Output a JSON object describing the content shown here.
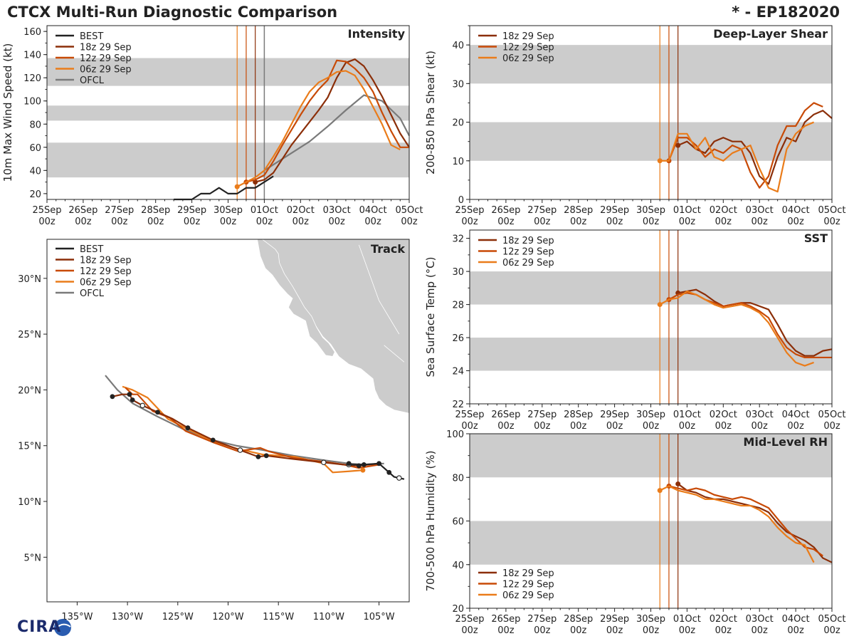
{
  "header": {
    "title": "CTCX Multi-Run Diagnostic Comparison",
    "storm": "* - EP182020"
  },
  "logo": {
    "text": "CIRA"
  },
  "colors": {
    "best": "#222222",
    "run18z": "#8b2e08",
    "run12z": "#c84a06",
    "run06z": "#ea7c1a",
    "ofcl": "#7a7a7a",
    "band": "#cccccc"
  },
  "time_axis": {
    "ticks": [
      "25Sep\n00z",
      "26Sep\n00z",
      "27Sep\n00z",
      "28Sep\n00z",
      "29Sep\n00z",
      "30Sep\n00z",
      "01Oct\n00z",
      "02Oct\n00z",
      "03Oct\n00z",
      "04Oct\n00z",
      "05Oct\n00z"
    ],
    "run_init_hours": [
      126,
      132,
      138
    ]
  },
  "chart_data": [
    {
      "id": "intensity",
      "type": "line",
      "title": "Intensity",
      "ylabel": "10m Max Wind Speed (kt)",
      "xlabel": "",
      "xunit": "hours since 25Sep 00z",
      "xlim": [
        0,
        240
      ],
      "ylim": [
        15,
        165
      ],
      "yticks": [
        20,
        40,
        60,
        80,
        100,
        120,
        140,
        160
      ],
      "bands": [
        [
          34,
          64
        ],
        [
          83,
          96
        ],
        [
          113,
          137
        ]
      ],
      "legend": [
        "BEST",
        "18z 29 Sep",
        "12z 29 Sep",
        "06z 29 Sep",
        "OFCL"
      ],
      "legend_position": "top-left",
      "series": [
        {
          "name": "BEST",
          "color": "#222222",
          "x": [
            84,
            90,
            96,
            102,
            108,
            114,
            120,
            126,
            132,
            138,
            144,
            150
          ],
          "y": [
            15,
            15,
            15,
            20,
            20,
            25,
            20,
            20,
            25,
            25,
            30,
            35
          ]
        },
        {
          "name": "OFCL",
          "color": "#7a7a7a",
          "x": [
            144,
            150,
            162,
            174,
            186,
            198,
            210,
            222,
            234,
            240
          ],
          "y": [
            40,
            45,
            55,
            65,
            78,
            92,
            105,
            100,
            85,
            70
          ]
        },
        {
          "name": "18z 29 Sep",
          "color": "#8b2e08",
          "x": [
            138,
            144,
            150,
            156,
            162,
            168,
            174,
            180,
            186,
            192,
            198,
            204,
            210,
            216,
            222,
            228,
            234,
            240
          ],
          "y": [
            30,
            32,
            38,
            50,
            62,
            72,
            82,
            92,
            103,
            120,
            133,
            136,
            130,
            118,
            104,
            88,
            72,
            60
          ]
        },
        {
          "name": "12z 29 Sep",
          "color": "#c84a06",
          "x": [
            132,
            138,
            144,
            150,
            156,
            162,
            168,
            174,
            180,
            186,
            192,
            198,
            204,
            210,
            216,
            222,
            228,
            234,
            240
          ],
          "y": [
            30,
            32,
            36,
            48,
            62,
            75,
            88,
            100,
            110,
            118,
            135,
            134,
            128,
            120,
            108,
            90,
            74,
            60,
            60
          ]
        },
        {
          "name": "06z 29 Sep",
          "color": "#ea7c1a",
          "x": [
            126,
            132,
            138,
            144,
            150,
            156,
            162,
            168,
            174,
            180,
            186,
            192,
            198,
            204,
            210,
            216,
            222,
            228,
            234
          ],
          "y": [
            26,
            30,
            34,
            40,
            52,
            65,
            80,
            95,
            108,
            116,
            120,
            125,
            126,
            122,
            110,
            95,
            80,
            62,
            58
          ]
        }
      ]
    },
    {
      "id": "shear",
      "type": "line",
      "title": "Deep-Layer Shear",
      "ylabel": "200-850 hPa Shear (kt)",
      "xlabel": "",
      "xunit": "hours since 25Sep 00z",
      "xlim": [
        0,
        240
      ],
      "ylim": [
        0,
        45
      ],
      "yticks": [
        0,
        10,
        20,
        30,
        40
      ],
      "bands": [
        [
          10,
          20
        ],
        [
          30,
          40
        ]
      ],
      "legend": [
        "18z 29 Sep",
        "12z 29 Sep",
        "06z 29 Sep"
      ],
      "legend_position": "top-left",
      "series": [
        {
          "name": "18z 29 Sep",
          "color": "#8b2e08",
          "x": [
            138,
            144,
            150,
            156,
            162,
            168,
            174,
            180,
            186,
            192,
            198,
            204,
            210,
            216,
            222,
            228,
            234,
            240
          ],
          "y": [
            14,
            15,
            13,
            12,
            15,
            16,
            15,
            15,
            12,
            6,
            4,
            11,
            16,
            15,
            20,
            22,
            23,
            21
          ]
        },
        {
          "name": "12z 29 Sep",
          "color": "#c84a06",
          "x": [
            132,
            138,
            144,
            150,
            156,
            162,
            168,
            174,
            180,
            186,
            192,
            198,
            204,
            210,
            216,
            222,
            228,
            234
          ],
          "y": [
            10,
            16,
            16,
            14,
            11,
            13,
            12,
            14,
            13,
            7,
            3,
            6,
            14,
            19,
            19,
            23,
            25,
            24
          ]
        },
        {
          "name": "06z 29 Sep",
          "color": "#ea7c1a",
          "x": [
            126,
            132,
            138,
            144,
            150,
            156,
            162,
            168,
            174,
            180,
            186,
            192,
            198,
            204,
            210,
            216,
            222,
            228
          ],
          "y": [
            10,
            10,
            17,
            17,
            13,
            16,
            11,
            10,
            12,
            13,
            14,
            8,
            3,
            2,
            13,
            17,
            19,
            20
          ]
        }
      ]
    },
    {
      "id": "sst",
      "type": "line",
      "title": "SST",
      "ylabel": "Sea Surface Temp (°C)",
      "xlabel": "",
      "xunit": "hours since 25Sep 00z",
      "xlim": [
        0,
        240
      ],
      "ylim": [
        22,
        32.5
      ],
      "yticks": [
        22,
        24,
        26,
        28,
        30,
        32
      ],
      "bands": [
        [
          24,
          26
        ],
        [
          28,
          30
        ]
      ],
      "legend": [
        "18z 29 Sep",
        "12z 29 Sep",
        "06z 29 Sep"
      ],
      "legend_position": "top-left",
      "series": [
        {
          "name": "18z 29 Sep",
          "color": "#8b2e08",
          "x": [
            138,
            144,
            150,
            156,
            162,
            168,
            174,
            180,
            186,
            192,
            198,
            204,
            210,
            216,
            222,
            228,
            234,
            240
          ],
          "y": [
            28.7,
            28.8,
            28.9,
            28.6,
            28.2,
            27.9,
            28.0,
            28.1,
            28.1,
            27.9,
            27.7,
            26.8,
            25.8,
            25.2,
            24.9,
            24.9,
            25.2,
            25.3
          ]
        },
        {
          "name": "12z 29 Sep",
          "color": "#c84a06",
          "x": [
            132,
            138,
            144,
            150,
            156,
            162,
            168,
            174,
            180,
            186,
            192,
            198,
            204,
            210,
            216,
            222,
            228,
            234,
            240
          ],
          "y": [
            28.3,
            28.6,
            28.7,
            28.6,
            28.3,
            28.1,
            27.9,
            28.0,
            28.1,
            27.9,
            27.6,
            27.2,
            26.2,
            25.4,
            25.0,
            24.8,
            24.8,
            24.8,
            24.8
          ]
        },
        {
          "name": "06z 29 Sep",
          "color": "#ea7c1a",
          "x": [
            126,
            132,
            138,
            144,
            150,
            156,
            162,
            168,
            174,
            180,
            186,
            192,
            198,
            204,
            210,
            216,
            222,
            228
          ],
          "y": [
            28.0,
            28.3,
            28.4,
            28.8,
            28.6,
            28.3,
            28.0,
            27.8,
            27.9,
            28.0,
            27.8,
            27.5,
            26.9,
            26.0,
            25.1,
            24.5,
            24.3,
            24.5
          ]
        }
      ]
    },
    {
      "id": "rh",
      "type": "line",
      "title": "Mid-Level RH",
      "ylabel": "700-500 hPa Humidity (%)",
      "xlabel": "",
      "xunit": "hours since 25Sep 00z",
      "xlim": [
        0,
        240
      ],
      "ylim": [
        20,
        100
      ],
      "yticks": [
        20,
        40,
        60,
        80,
        100
      ],
      "bands": [
        [
          40,
          60
        ],
        [
          80,
          100
        ]
      ],
      "legend": [
        "18z 29 Sep",
        "12z 29 Sep",
        "06z 29 Sep"
      ],
      "legend_position": "bottom-left",
      "series": [
        {
          "name": "18z 29 Sep",
          "color": "#8b2e08",
          "x": [
            138,
            144,
            150,
            156,
            162,
            168,
            174,
            180,
            186,
            192,
            198,
            204,
            210,
            216,
            222,
            228,
            234,
            240
          ],
          "y": [
            77,
            74,
            73,
            71,
            70,
            70,
            69,
            68,
            67,
            66,
            64,
            59,
            55,
            53,
            51,
            48,
            43,
            41
          ]
        },
        {
          "name": "12z 29 Sep",
          "color": "#c84a06",
          "x": [
            132,
            138,
            144,
            150,
            156,
            162,
            168,
            174,
            180,
            186,
            192,
            198,
            204,
            210,
            216,
            222,
            228,
            234
          ],
          "y": [
            76,
            75,
            74,
            75,
            74,
            72,
            71,
            70,
            71,
            70,
            68,
            66,
            61,
            56,
            52,
            48,
            47,
            44
          ]
        },
        {
          "name": "06z 29 Sep",
          "color": "#ea7c1a",
          "x": [
            126,
            132,
            138,
            144,
            150,
            156,
            162,
            168,
            174,
            180,
            186,
            192,
            198,
            204,
            210,
            216,
            222,
            228
          ],
          "y": [
            74,
            76,
            74,
            73,
            72,
            70,
            70,
            69,
            68,
            67,
            67,
            65,
            62,
            57,
            53,
            50,
            49,
            41
          ]
        }
      ]
    },
    {
      "id": "track",
      "type": "scatter",
      "title": "Track",
      "xlabel": "",
      "ylabel": "",
      "lon_range": [
        -138,
        -102
      ],
      "lat_range": [
        1,
        33.5
      ],
      "lon_ticks": [
        -135,
        -130,
        -125,
        -120,
        -115,
        -110,
        -105
      ],
      "lon_tick_labels": [
        "135°W",
        "130°W",
        "125°W",
        "120°W",
        "115°W",
        "110°W",
        "105°W"
      ],
      "lat_ticks": [
        5,
        10,
        15,
        20,
        25,
        30
      ],
      "lat_tick_labels": [
        "5°N",
        "10°N",
        "15°N",
        "20°N",
        "25°N",
        "30°N"
      ],
      "legend": [
        "BEST",
        "18z 29 Sep",
        "12z 29 Sep",
        "06z 29 Sep",
        "OFCL"
      ],
      "legend_position": "top-left",
      "series": [
        {
          "name": "BEST",
          "color": "#222222",
          "lon": [
            -102.5,
            -103.0,
            -103.5,
            -104.0,
            -104.5,
            -105.0,
            -106.5,
            -108.0
          ],
          "lat": [
            12.0,
            12.1,
            12.2,
            12.6,
            13.0,
            13.4,
            13.3,
            13.3
          ]
        },
        {
          "name": "OFCL",
          "color": "#7a7a7a",
          "lon": [
            -104.5,
            -106.5,
            -108.0,
            -110.5,
            -113.5,
            -116.5,
            -119.2,
            -121.5,
            -124.5,
            -127.0,
            -129.5,
            -131.0,
            -132.2
          ],
          "lat": [
            13.4,
            13.3,
            13.4,
            13.7,
            14.1,
            14.6,
            15.0,
            15.5,
            16.5,
            17.6,
            18.8,
            20.0,
            21.3
          ]
        },
        {
          "name": "18z 29 Sep",
          "color": "#8b2e08",
          "lon": [
            -105.0,
            -107.0,
            -108.5,
            -110.5,
            -113.5,
            -116.2,
            -117.0,
            -118.8,
            -121.5,
            -124.0,
            -125.5,
            -127.0,
            -128.5,
            -129.5,
            -129.8,
            -130.5,
            -131.5
          ],
          "lat": [
            13.4,
            13.2,
            13.3,
            13.5,
            13.8,
            14.1,
            14.0,
            14.6,
            15.5,
            16.6,
            17.4,
            18.0,
            18.6,
            19.1,
            19.6,
            19.6,
            19.4
          ]
        },
        {
          "name": "12z 29 Sep",
          "color": "#c84a06",
          "lon": [
            -105.0,
            -107.0,
            -108.5,
            -110.0,
            -113.5,
            -116.0,
            -116.8,
            -119.0,
            -121.5,
            -124.2,
            -125.8,
            -127.5,
            -129.0,
            -129.5,
            -130.2
          ],
          "lat": [
            13.3,
            13.0,
            13.3,
            13.5,
            13.9,
            14.5,
            14.8,
            14.5,
            15.3,
            16.3,
            17.5,
            18.1,
            19.6,
            19.6,
            20.2
          ]
        },
        {
          "name": "06z 29 Sep",
          "color": "#ea7c1a",
          "lon": [
            -106.6,
            -108.0,
            -109.6,
            -110.5,
            -113.3,
            -116.5,
            -119.0,
            -121.5,
            -124.5,
            -126.0,
            -128.0,
            -129.5,
            -130.5
          ],
          "lat": [
            12.8,
            12.7,
            12.6,
            13.4,
            14.0,
            14.2,
            14.7,
            15.4,
            16.7,
            17.4,
            19.3,
            20.0,
            20.3
          ]
        }
      ]
    }
  ]
}
